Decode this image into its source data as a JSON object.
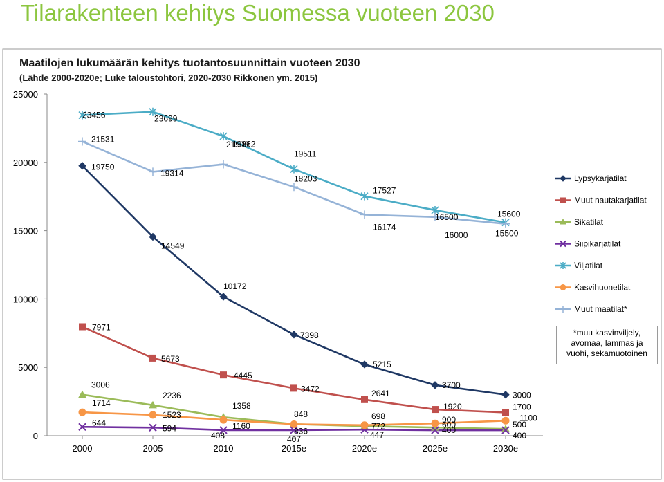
{
  "page": {
    "heading": "Tilarakenteen kehitys Suomessa vuoteen 2030"
  },
  "colors": {
    "heading": "#8cc63f",
    "frame_bg": "#ffffff",
    "frame_border": "#9a9a9a"
  },
  "chart_data": {
    "type": "line",
    "title": "Maatilojen lukumäärän kehitys tuotantosuunnittain vuoteen 2030",
    "subtitle": "(Lähde 2000-2020e; Luke taloustohtori, 2020-2030 Rikkonen ym. 2015)",
    "xlabel": "",
    "ylabel": "",
    "categories": [
      "2000",
      "2005",
      "2010",
      "2015e",
      "2020e",
      "2025e",
      "2030e"
    ],
    "ylim": [
      0,
      25000
    ],
    "yticks": [
      "0",
      "5000",
      "10000",
      "15000",
      "20000",
      "25000"
    ],
    "grid": false,
    "legend_position": "right",
    "series": [
      {
        "name": "Lypsykarjatilat",
        "color": "#1f3864",
        "marker": "diamond",
        "values": [
          19750,
          14549,
          10172,
          7398,
          5215,
          3700,
          3000
        ],
        "labels": [
          "19750",
          "14549",
          "10172",
          "7398",
          "5215",
          "3700",
          "3000"
        ]
      },
      {
        "name": "Muut nautakarjatilat",
        "color": "#c0504d",
        "marker": "square",
        "values": [
          7971,
          5673,
          4445,
          3472,
          2641,
          1920,
          1700
        ],
        "labels": [
          "7971",
          "5673",
          "4445",
          "3472",
          "2641",
          "1920",
          "1700"
        ]
      },
      {
        "name": "Sikatilat",
        "color": "#9bbb59",
        "marker": "triangle",
        "values": [
          3006,
          2236,
          1358,
          848,
          698,
          600,
          500
        ],
        "labels": [
          "3006",
          "2236",
          "1358",
          "848",
          "698",
          "600",
          "500"
        ]
      },
      {
        "name": "Siipikarjatilat",
        "color": "#7030a0",
        "marker": "x",
        "values": [
          644,
          594,
          408,
          407,
          447,
          400,
          400
        ],
        "labels": [
          "644",
          "594",
          "408",
          "407",
          "447",
          "400",
          "400"
        ]
      },
      {
        "name": "Viljatilat",
        "color": "#4bacc6",
        "marker": "star",
        "values": [
          23456,
          23699,
          21909,
          19511,
          17527,
          16500,
          15600
        ],
        "labels": [
          "23456",
          "23699",
          "21909",
          "19511",
          "17527",
          "16500",
          "15600"
        ]
      },
      {
        "name": "Kasvihuonetilat",
        "color": "#f79646",
        "marker": "circle",
        "values": [
          1714,
          1523,
          1160,
          836,
          772,
          900,
          1100
        ],
        "labels": [
          "1714",
          "1523",
          "1160",
          "836",
          "772",
          "900",
          "1100"
        ]
      },
      {
        "name": "Muut maatilat*",
        "color": "#95b3d7",
        "marker": "plus",
        "values": [
          21531,
          19314,
          19862,
          18203,
          16174,
          16000,
          15500
        ],
        "labels": [
          "21531",
          "19314",
          "19862",
          "18203",
          "16174",
          "16000",
          "15500"
        ]
      }
    ],
    "annotation": "*muu kasvinviljely, avomaa, lammas ja vuohi, sekamuotoinen"
  }
}
